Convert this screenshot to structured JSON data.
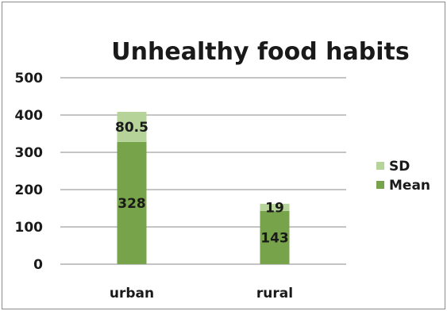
{
  "chart_data": {
    "type": "bar",
    "stacked": true,
    "title": "Unhealthy food habits",
    "xlabel": "",
    "ylabel": "",
    "categories": [
      "urban",
      "rural"
    ],
    "series": [
      {
        "name": "Mean",
        "values": [
          328,
          143
        ],
        "color": "#77a34a"
      },
      {
        "name": "SD",
        "values": [
          80.5,
          19
        ],
        "color": "#b6d39a"
      }
    ],
    "data_labels": [
      {
        "series": "Mean",
        "labels": [
          "328",
          "143"
        ]
      },
      {
        "series": "SD",
        "labels": [
          "80.5",
          "19"
        ]
      }
    ],
    "ylim": [
      0,
      500
    ],
    "yticks": [
      0,
      100,
      200,
      300,
      400,
      500
    ],
    "grid": true,
    "legend_position": "right"
  }
}
